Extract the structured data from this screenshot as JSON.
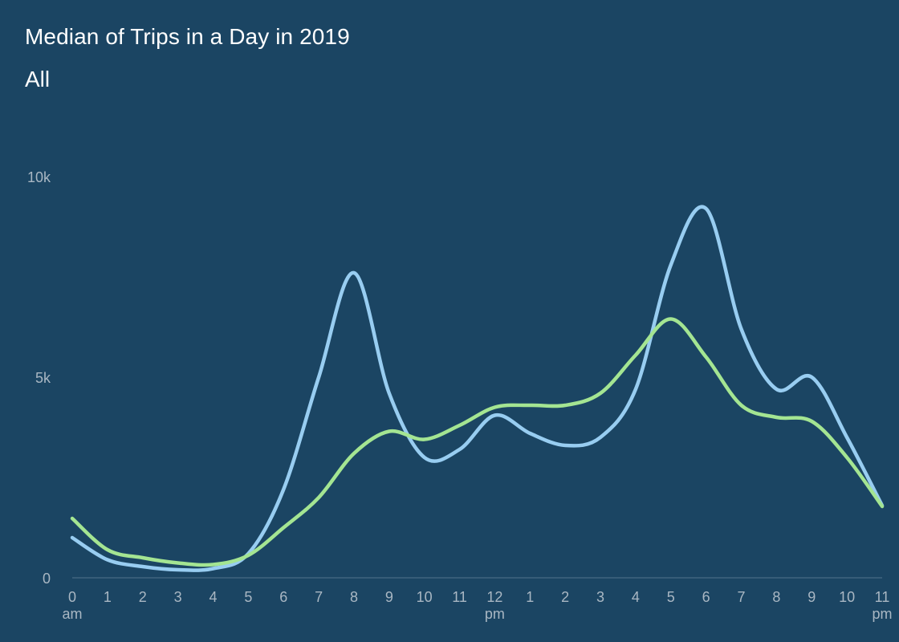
{
  "title": "Median of Trips in a Day in 2019",
  "subtitle": "All",
  "colors": {
    "background": "#1b4563",
    "series_blue": "#98cdf1",
    "series_green": "#a4e592",
    "axis": "#3f6580",
    "tick_text": "#a9b7c3"
  },
  "chart_data": {
    "type": "line",
    "title": "Median of Trips in a Day in 2019",
    "subtitle": "All",
    "x": [
      0,
      1,
      2,
      3,
      4,
      5,
      6,
      7,
      8,
      9,
      10,
      11,
      12,
      13,
      14,
      15,
      16,
      17,
      18,
      19,
      20,
      21,
      22,
      23
    ],
    "x_tick_labels": [
      "0",
      "1",
      "2",
      "3",
      "4",
      "5",
      "6",
      "7",
      "8",
      "9",
      "10",
      "11",
      "12",
      "1",
      "2",
      "3",
      "4",
      "5",
      "6",
      "7",
      "8",
      "9",
      "10",
      "11"
    ],
    "x_tick_sublabels": {
      "0": "am",
      "12": "pm",
      "23": "pm"
    },
    "y_tick_labels": [
      "0",
      "5k",
      "10k"
    ],
    "y_ticks": [
      0,
      5000,
      10000
    ],
    "ylim": [
      0,
      10000
    ],
    "grid": false,
    "series": [
      {
        "color": "#98cdf1",
        "values": [
          1000,
          450,
          280,
          200,
          230,
          600,
          2200,
          5000,
          7600,
          4600,
          3000,
          3200,
          4050,
          3600,
          3300,
          3500,
          4700,
          7800,
          9200,
          6200,
          4700,
          5000,
          3500,
          1800
        ]
      },
      {
        "color": "#a4e592",
        "values": [
          1480,
          700,
          500,
          370,
          330,
          560,
          1250,
          2000,
          3100,
          3650,
          3450,
          3800,
          4250,
          4300,
          4300,
          4600,
          5550,
          6450,
          5500,
          4300,
          4000,
          3900,
          3000,
          1780
        ]
      }
    ]
  }
}
